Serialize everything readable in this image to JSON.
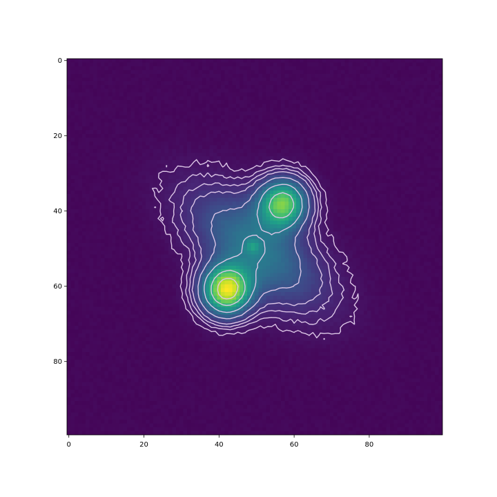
{
  "chart_data": {
    "type": "heatmap",
    "title": "",
    "xlabel": "",
    "ylabel": "",
    "colormap": "viridis",
    "grid_shape": [
      100,
      100
    ],
    "xlim": [
      0,
      99
    ],
    "ylim": [
      99,
      0
    ],
    "x_ticks": [
      0,
      20,
      40,
      60,
      80
    ],
    "y_ticks": [
      0,
      20,
      40,
      60,
      80
    ],
    "x_tick_labels": [
      "0",
      "20",
      "40",
      "60",
      "80"
    ],
    "y_tick_labels": [
      "0",
      "20",
      "40",
      "60",
      "80"
    ],
    "background_level": 0.02,
    "sources": [
      {
        "name": "peak-upper-right",
        "x": 57,
        "y": 38,
        "amplitude": 0.8,
        "sigma": 4.5
      },
      {
        "name": "peak-lower-left",
        "x": 42,
        "y": 61,
        "amplitude": 1.0,
        "sigma": 4.5
      },
      {
        "name": "bridge-blob",
        "x": 50,
        "y": 50,
        "amplitude": 0.42,
        "sigma": 14,
        "sigma_minor": 7,
        "angle_deg": -38
      },
      {
        "name": "small-knot",
        "x": 49,
        "y": 49.5,
        "amplitude": 0.18,
        "sigma": 1.3
      }
    ],
    "contour_levels": [
      0.05,
      0.08,
      0.11,
      0.15,
      0.25,
      0.42,
      0.65,
      0.85
    ],
    "contour_color": "#dcc6e6"
  }
}
